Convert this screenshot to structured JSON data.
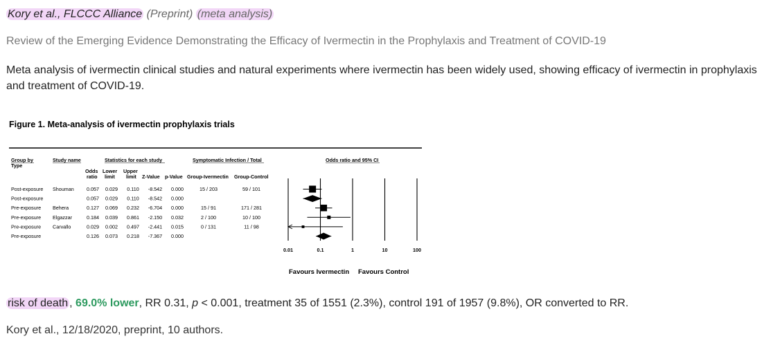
{
  "header": {
    "authors": "Kory et al., FLCCC Alliance",
    "preprint": "(Preprint)",
    "meta_tag": "(meta analysis)",
    "title": "Review of the Emerging Evidence Demonstrating the Efficacy of Ivermectin in the Prophylaxis and Treatment of COVID-19",
    "summary": "Meta analysis of ivermectin clinical studies and natural experiments where ivermectin has been widely used, showing efficacy of ivermectin in prophylaxis and treatment of COVID-19."
  },
  "figure": {
    "title": "Figure 1.  Meta-analysis of ivermectin prophylaxis trials",
    "headers": {
      "group_by": [
        "Group by",
        "Type"
      ],
      "study_name": "Study name",
      "stats": "Statistics for each study",
      "symptomatic": "Symptomatic Infection / Total",
      "or_ci": "Odds ratio and 95% CI",
      "odds": [
        "Odds",
        "ratio"
      ],
      "lower": [
        "Lower",
        "limit"
      ],
      "upper": [
        "Upper",
        "limit"
      ],
      "z": "Z-Value",
      "p": "p-Value",
      "grp_iv": "Group-Ivermectin",
      "grp_ctrl": "Group-Control"
    },
    "rows": [
      {
        "type": "Post-exposure",
        "study": "Shouman",
        "or": "0.057",
        "lower": "0.029",
        "upper": "0.110",
        "z": "-8.542",
        "p": "0.000",
        "iv": "15 / 203",
        "ctrl": "59 / 101"
      },
      {
        "type": "Post-exposure",
        "study": "",
        "or": "0.057",
        "lower": "0.029",
        "upper": "0.110",
        "z": "-8.542",
        "p": "0.000",
        "iv": "",
        "ctrl": ""
      },
      {
        "type": "Pre-exposure",
        "study": "Behera",
        "or": "0.127",
        "lower": "0.069",
        "upper": "0.232",
        "z": "-6.704",
        "p": "0.000",
        "iv": "15 / 91",
        "ctrl": "171 / 281"
      },
      {
        "type": "Pre-exposure",
        "study": "Elgazzar",
        "or": "0.184",
        "lower": "0.039",
        "upper": "0.861",
        "z": "-2.150",
        "p": "0.032",
        "iv": "2 / 100",
        "ctrl": "10 / 100"
      },
      {
        "type": "Pre-exposure",
        "study": "Carvallo",
        "or": "0.029",
        "lower": "0.002",
        "upper": "0.497",
        "z": "-2.441",
        "p": "0.015",
        "iv": "0 / 131",
        "ctrl": "11 / 98"
      },
      {
        "type": "Pre-exposure",
        "study": "",
        "or": "0.126",
        "lower": "0.073",
        "upper": "0.218",
        "z": "-7.367",
        "p": "0.000",
        "iv": "",
        "ctrl": ""
      }
    ],
    "axis_ticks": [
      "0.01",
      "0.1",
      "1",
      "10",
      "100"
    ],
    "favours_left": "Favours Ivermectin",
    "favours_right": "Favours Control"
  },
  "chart_data": {
    "type": "forest",
    "title": "Figure 1.  Meta-analysis of ivermectin prophylaxis trials",
    "xlabel": "Odds ratio and 95% CI",
    "xscale": "log",
    "xlim": [
      0.01,
      100
    ],
    "ticks": [
      0.01,
      0.1,
      1,
      10,
      100
    ],
    "points": [
      {
        "label": "Shouman",
        "group": "Post-exposure",
        "or": 0.057,
        "lower": 0.029,
        "upper": 0.11,
        "kind": "study",
        "weight": 1.0
      },
      {
        "label": "Post-exposure",
        "group": "Post-exposure",
        "or": 0.057,
        "lower": 0.029,
        "upper": 0.11,
        "kind": "summary"
      },
      {
        "label": "Behera",
        "group": "Pre-exposure",
        "or": 0.127,
        "lower": 0.069,
        "upper": 0.232,
        "kind": "study",
        "weight": 0.9
      },
      {
        "label": "Elgazzar",
        "group": "Pre-exposure",
        "or": 0.184,
        "lower": 0.039,
        "upper": 0.861,
        "kind": "study",
        "weight": 0.25
      },
      {
        "label": "Carvallo",
        "group": "Pre-exposure",
        "or": 0.029,
        "lower": 0.002,
        "upper": 0.497,
        "kind": "study",
        "weight": 0.15
      },
      {
        "label": "Pre-exposure",
        "group": "Pre-exposure",
        "or": 0.126,
        "lower": 0.073,
        "upper": 0.218,
        "kind": "summary"
      }
    ],
    "annotations": [
      "Favours Ivermectin",
      "Favours Control"
    ]
  },
  "result": {
    "outcome": "risk of death",
    "sep1": ", ",
    "effect": "69.0% lower",
    "stats": ", RR 0.31, ",
    "p_symbol": "p",
    "rest": " < 0.001, treatment 35 of 1551 (2.3%), control 191 of 1957 (9.8%), OR converted to RR."
  },
  "citation": "Kory et al., 12/18/2020, preprint, 10 authors.",
  "colors": {
    "highlight": "#e8b4f0",
    "green": "#2d9a5f"
  }
}
